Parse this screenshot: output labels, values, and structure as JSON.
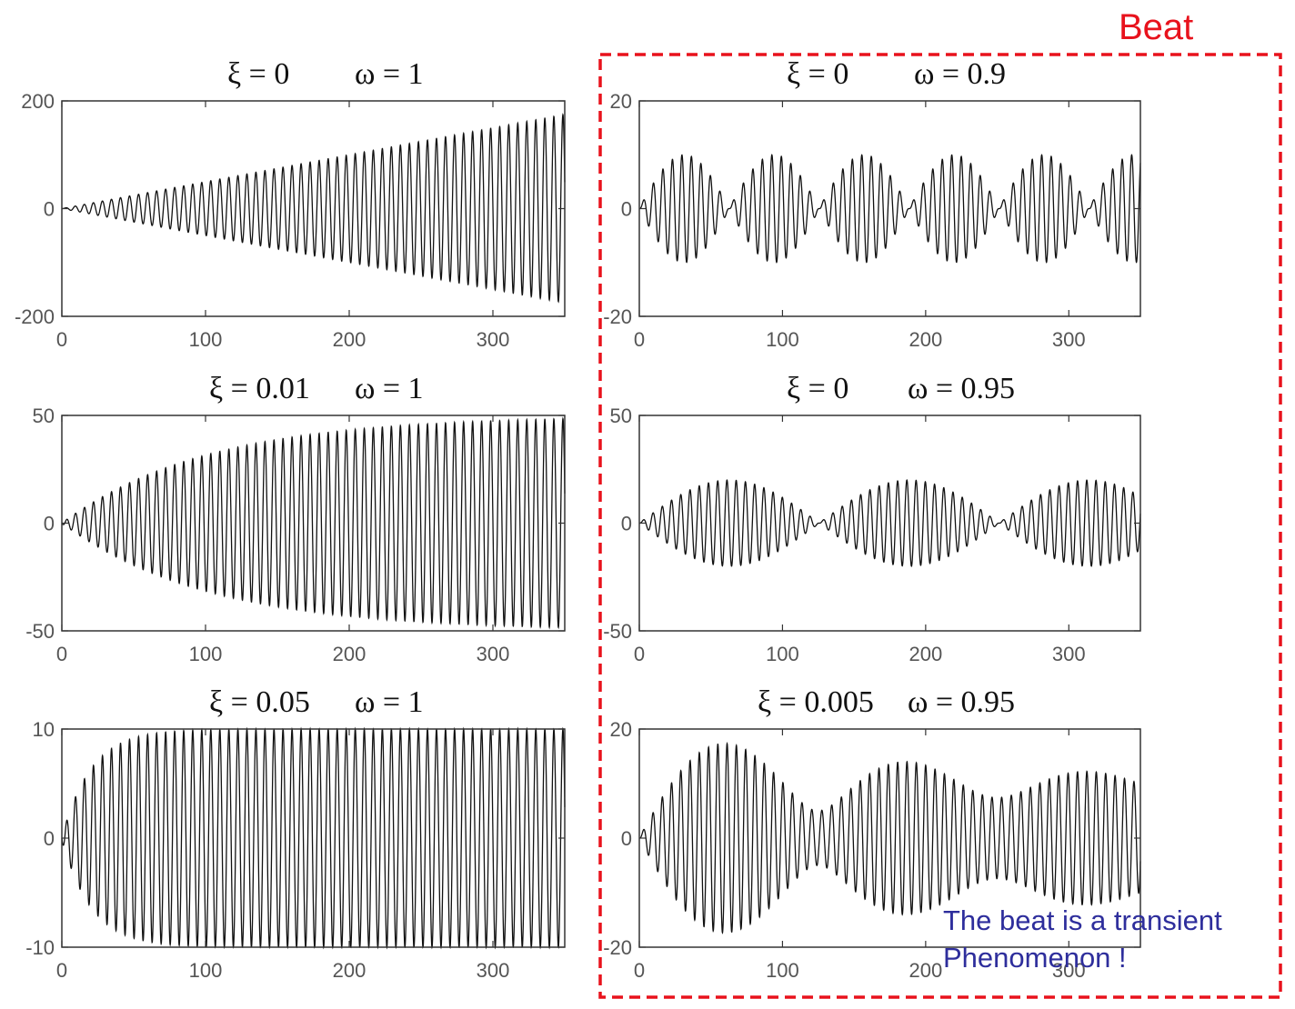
{
  "figure": {
    "beat_label": "Beat",
    "note_line1": "The beat is a transient",
    "note_line2": "Phenomenon !",
    "colors": {
      "beat_box": "#e8121c",
      "note_text": "#2e2e9c",
      "trace": "#111111",
      "axis": "#333333"
    }
  },
  "chart_data": [
    {
      "type": "line",
      "title_xi": "ξ = 0",
      "title_omega": "ω = 1",
      "xlabel": "",
      "ylabel": "",
      "xlim": [
        0,
        350
      ],
      "ylim": [
        -200,
        200
      ],
      "xticks": [
        "0",
        "100",
        "200",
        "300"
      ],
      "yticks": [
        "200",
        "0",
        "-200"
      ],
      "yticks_values": [
        200,
        0,
        -200
      ],
      "series": [
        {
          "xi": 0,
          "omega": 1,
          "envelope": "linear growth, ~175 at t=350"
        }
      ]
    },
    {
      "type": "line",
      "title_xi": "ξ = 0",
      "title_omega": "ω = 0.9",
      "xlabel": "",
      "ylabel": "",
      "xlim": [
        0,
        350
      ],
      "ylim": [
        -20,
        20
      ],
      "xticks": [
        "0",
        "100",
        "200",
        "300"
      ],
      "yticks": [
        "20",
        "0",
        "-20"
      ],
      "yticks_values": [
        20,
        0,
        -20
      ],
      "series": [
        {
          "xi": 0,
          "omega": 0.9,
          "envelope": "beat, max ~10, period ~63"
        }
      ]
    },
    {
      "type": "line",
      "title_xi": "ξ = 0.01",
      "title_omega": "ω = 1",
      "xlabel": "",
      "ylabel": "",
      "xlim": [
        0,
        350
      ],
      "ylim": [
        -50,
        50
      ],
      "xticks": [
        "0",
        "100",
        "200",
        "300"
      ],
      "yticks": [
        "50",
        "0",
        "-50"
      ],
      "yticks_values": [
        50,
        0,
        -50
      ],
      "series": [
        {
          "xi": 0.01,
          "omega": 1,
          "envelope": "saturating to ~50"
        }
      ]
    },
    {
      "type": "line",
      "title_xi": "ξ = 0",
      "title_omega": "ω = 0.95",
      "xlabel": "",
      "ylabel": "",
      "xlim": [
        0,
        350
      ],
      "ylim": [
        -50,
        50
      ],
      "xticks": [
        "0",
        "100",
        "200",
        "300"
      ],
      "yticks": [
        "50",
        "0",
        "-50"
      ],
      "yticks_values": [
        50,
        0,
        -50
      ],
      "series": [
        {
          "xi": 0,
          "omega": 0.95,
          "envelope": "beat, max ~20, period ~126"
        }
      ]
    },
    {
      "type": "line",
      "title_xi": "ξ = 0.05",
      "title_omega": "ω = 1",
      "xlabel": "",
      "ylabel": "",
      "xlim": [
        0,
        350
      ],
      "ylim": [
        -10,
        10
      ],
      "xticks": [
        "0",
        "100",
        "200",
        "300"
      ],
      "yticks": [
        "10",
        "0",
        "-10"
      ],
      "yticks_values": [
        10,
        0,
        -10
      ],
      "series": [
        {
          "xi": 0.05,
          "omega": 1,
          "envelope": "saturating to ~10"
        }
      ]
    },
    {
      "type": "line",
      "title_xi": "ξ = 0.005",
      "title_omega": "ω = 0.95",
      "xlabel": "",
      "ylabel": "",
      "xlim": [
        0,
        350
      ],
      "ylim": [
        -20,
        20
      ],
      "xticks": [
        "0",
        "100",
        "200",
        "300"
      ],
      "yticks": [
        "20",
        "0",
        "-20"
      ],
      "yticks_values": [
        20,
        0,
        -20
      ],
      "series": [
        {
          "xi": 0.005,
          "omega": 0.95,
          "envelope": "decaying beat, peaks ~18, ~14, ~12"
        }
      ]
    }
  ]
}
